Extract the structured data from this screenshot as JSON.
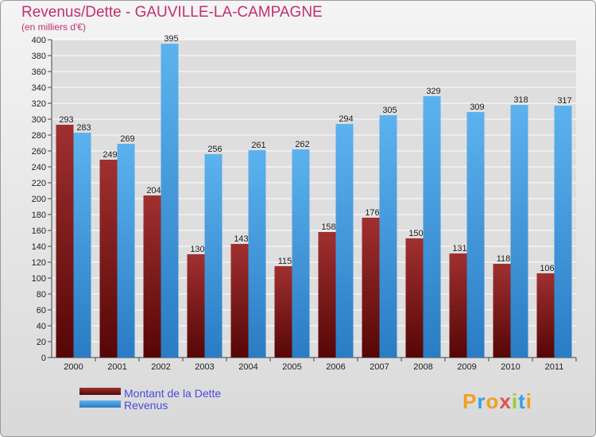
{
  "chart_data": {
    "type": "bar",
    "title": "Revenus/Dette - GAUVILLE-LA-CAMPAGNE",
    "subtitle": "(en milliers d'€)",
    "categories": [
      "2000",
      "2001",
      "2002",
      "2003",
      "2004",
      "2005",
      "2006",
      "2007",
      "2008",
      "2009",
      "2010",
      "2011"
    ],
    "series": [
      {
        "name": "Montant de la Dette",
        "color": "#7a1818",
        "values": [
          293,
          249,
          204,
          130,
          143,
          115,
          158,
          176,
          150,
          131,
          118,
          106
        ]
      },
      {
        "name": "Revenus",
        "color": "#3a98dc",
        "values": [
          283,
          269,
          395,
          256,
          261,
          262,
          294,
          305,
          329,
          309,
          318,
          317
        ]
      }
    ],
    "ylim": [
      0,
      400
    ],
    "ytick_step": 20,
    "grid": true,
    "legend": "bottom-left"
  },
  "brand": "Proxiti"
}
